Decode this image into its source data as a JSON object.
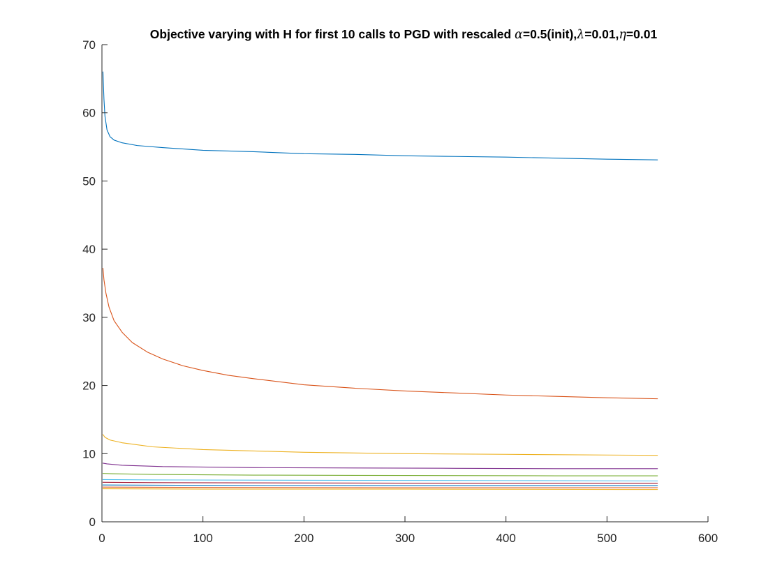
{
  "chart_data": {
    "type": "line",
    "title": {
      "prefix": "Objective varying with H for first 10 calls to PGD with rescaled ",
      "alpha_symbol": "α",
      "alpha_value": "=0.5(init),",
      "lambda_symbol": "λ",
      "lambda_value": "=0.01,",
      "eta_symbol": "η",
      "eta_value": "=0.01"
    },
    "xlabel": "",
    "ylabel": "",
    "xlim": [
      0,
      600
    ],
    "ylim": [
      0,
      70
    ],
    "x_ticks": [
      0,
      100,
      200,
      300,
      400,
      500,
      600
    ],
    "y_ticks": [
      0,
      10,
      20,
      30,
      40,
      50,
      60,
      70
    ],
    "grid": false,
    "x_range": [
      1,
      550
    ],
    "series": [
      {
        "color": "#0072BD",
        "points": [
          [
            1,
            66
          ],
          [
            2,
            62
          ],
          [
            3,
            59.5
          ],
          [
            5,
            57.5
          ],
          [
            8,
            56.5
          ],
          [
            12,
            56
          ],
          [
            20,
            55.6
          ],
          [
            35,
            55.2
          ],
          [
            60,
            54.9
          ],
          [
            100,
            54.5
          ],
          [
            150,
            54.3
          ],
          [
            200,
            54.0
          ],
          [
            250,
            53.9
          ],
          [
            300,
            53.7
          ],
          [
            350,
            53.6
          ],
          [
            400,
            53.5
          ],
          [
            450,
            53.35
          ],
          [
            500,
            53.2
          ],
          [
            550,
            53.1
          ]
        ]
      },
      {
        "color": "#D95319",
        "points": [
          [
            1,
            37.2
          ],
          [
            2,
            35.5
          ],
          [
            4,
            33.5
          ],
          [
            7,
            31.5
          ],
          [
            12,
            29.5
          ],
          [
            20,
            27.8
          ],
          [
            30,
            26.3
          ],
          [
            45,
            24.9
          ],
          [
            60,
            23.9
          ],
          [
            80,
            22.9
          ],
          [
            100,
            22.2
          ],
          [
            125,
            21.5
          ],
          [
            150,
            21.0
          ],
          [
            200,
            20.1
          ],
          [
            250,
            19.6
          ],
          [
            300,
            19.2
          ],
          [
            350,
            18.9
          ],
          [
            400,
            18.6
          ],
          [
            450,
            18.4
          ],
          [
            500,
            18.2
          ],
          [
            550,
            18.05
          ]
        ]
      },
      {
        "color": "#EDB120",
        "points": [
          [
            1,
            12.8
          ],
          [
            3,
            12.4
          ],
          [
            8,
            12.0
          ],
          [
            20,
            11.6
          ],
          [
            50,
            11.0
          ],
          [
            100,
            10.6
          ],
          [
            200,
            10.2
          ],
          [
            300,
            10.0
          ],
          [
            400,
            9.9
          ],
          [
            500,
            9.8
          ],
          [
            550,
            9.75
          ]
        ]
      },
      {
        "color": "#7E2F8E",
        "points": [
          [
            1,
            8.6
          ],
          [
            5,
            8.5
          ],
          [
            20,
            8.3
          ],
          [
            60,
            8.1
          ],
          [
            150,
            7.95
          ],
          [
            250,
            7.9
          ],
          [
            350,
            7.85
          ],
          [
            450,
            7.8
          ],
          [
            550,
            7.8
          ]
        ]
      },
      {
        "color": "#77AC30",
        "points": [
          [
            1,
            7.1
          ],
          [
            10,
            7.05
          ],
          [
            50,
            6.95
          ],
          [
            150,
            6.85
          ],
          [
            300,
            6.8
          ],
          [
            450,
            6.75
          ],
          [
            550,
            6.75
          ]
        ]
      },
      {
        "color": "#4DBEEE",
        "points": [
          [
            1,
            6.2
          ],
          [
            50,
            6.15
          ],
          [
            200,
            6.1
          ],
          [
            400,
            6.05
          ],
          [
            550,
            6.0
          ]
        ]
      },
      {
        "color": "#A2142F",
        "points": [
          [
            1,
            5.8
          ],
          [
            50,
            5.75
          ],
          [
            200,
            5.7
          ],
          [
            400,
            5.65
          ],
          [
            550,
            5.65
          ]
        ]
      },
      {
        "color": "#0072BD",
        "points": [
          [
            1,
            5.4
          ],
          [
            100,
            5.35
          ],
          [
            300,
            5.3
          ],
          [
            550,
            5.3
          ]
        ]
      },
      {
        "color": "#D95319",
        "points": [
          [
            1,
            5.1
          ],
          [
            100,
            5.05
          ],
          [
            300,
            5.0
          ],
          [
            550,
            5.0
          ]
        ]
      },
      {
        "color": "#EDB120",
        "points": [
          [
            1,
            4.85
          ],
          [
            100,
            4.8
          ],
          [
            300,
            4.8
          ],
          [
            550,
            4.75
          ]
        ]
      }
    ]
  }
}
